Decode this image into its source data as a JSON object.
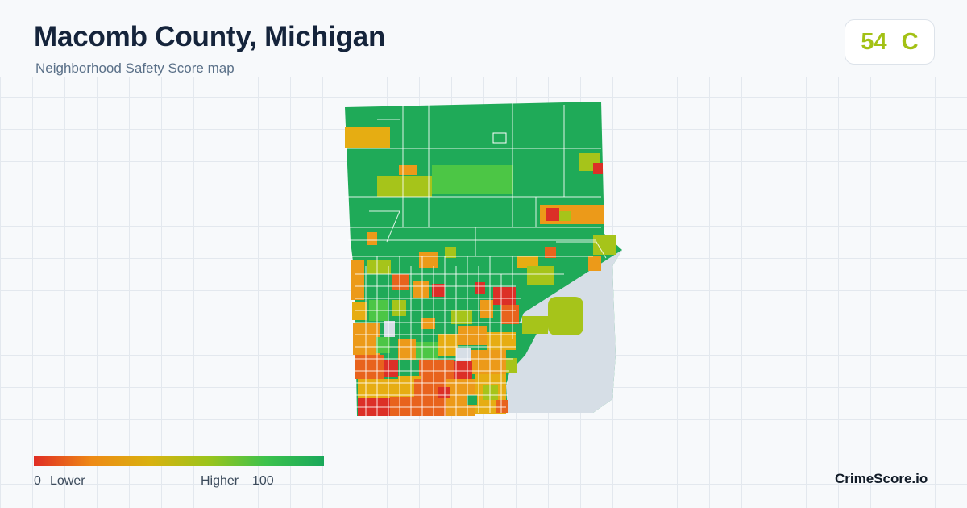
{
  "header": {
    "title": "Macomb County, Michigan",
    "subtitle": "Neighborhood Safety Score map"
  },
  "score": {
    "value": "54",
    "grade": "C",
    "color": "#a3c115"
  },
  "legend": {
    "min": "0",
    "min_label": "Lower",
    "max_label": "Higher",
    "max": "100",
    "colors": [
      "#e02d24",
      "#ee8a15",
      "#d9b10f",
      "#9cc41b",
      "#3cc24c",
      "#1aa85a"
    ]
  },
  "palette": {
    "red": "#dc2f27",
    "orange_red": "#e8631d",
    "orange": "#ec9a19",
    "amber": "#e6ad12",
    "yellow_green": "#a6c41a",
    "light_green": "#4cc645",
    "green": "#1faa58",
    "water": "#d6dee6"
  },
  "brand": "CrimeScore.io"
}
